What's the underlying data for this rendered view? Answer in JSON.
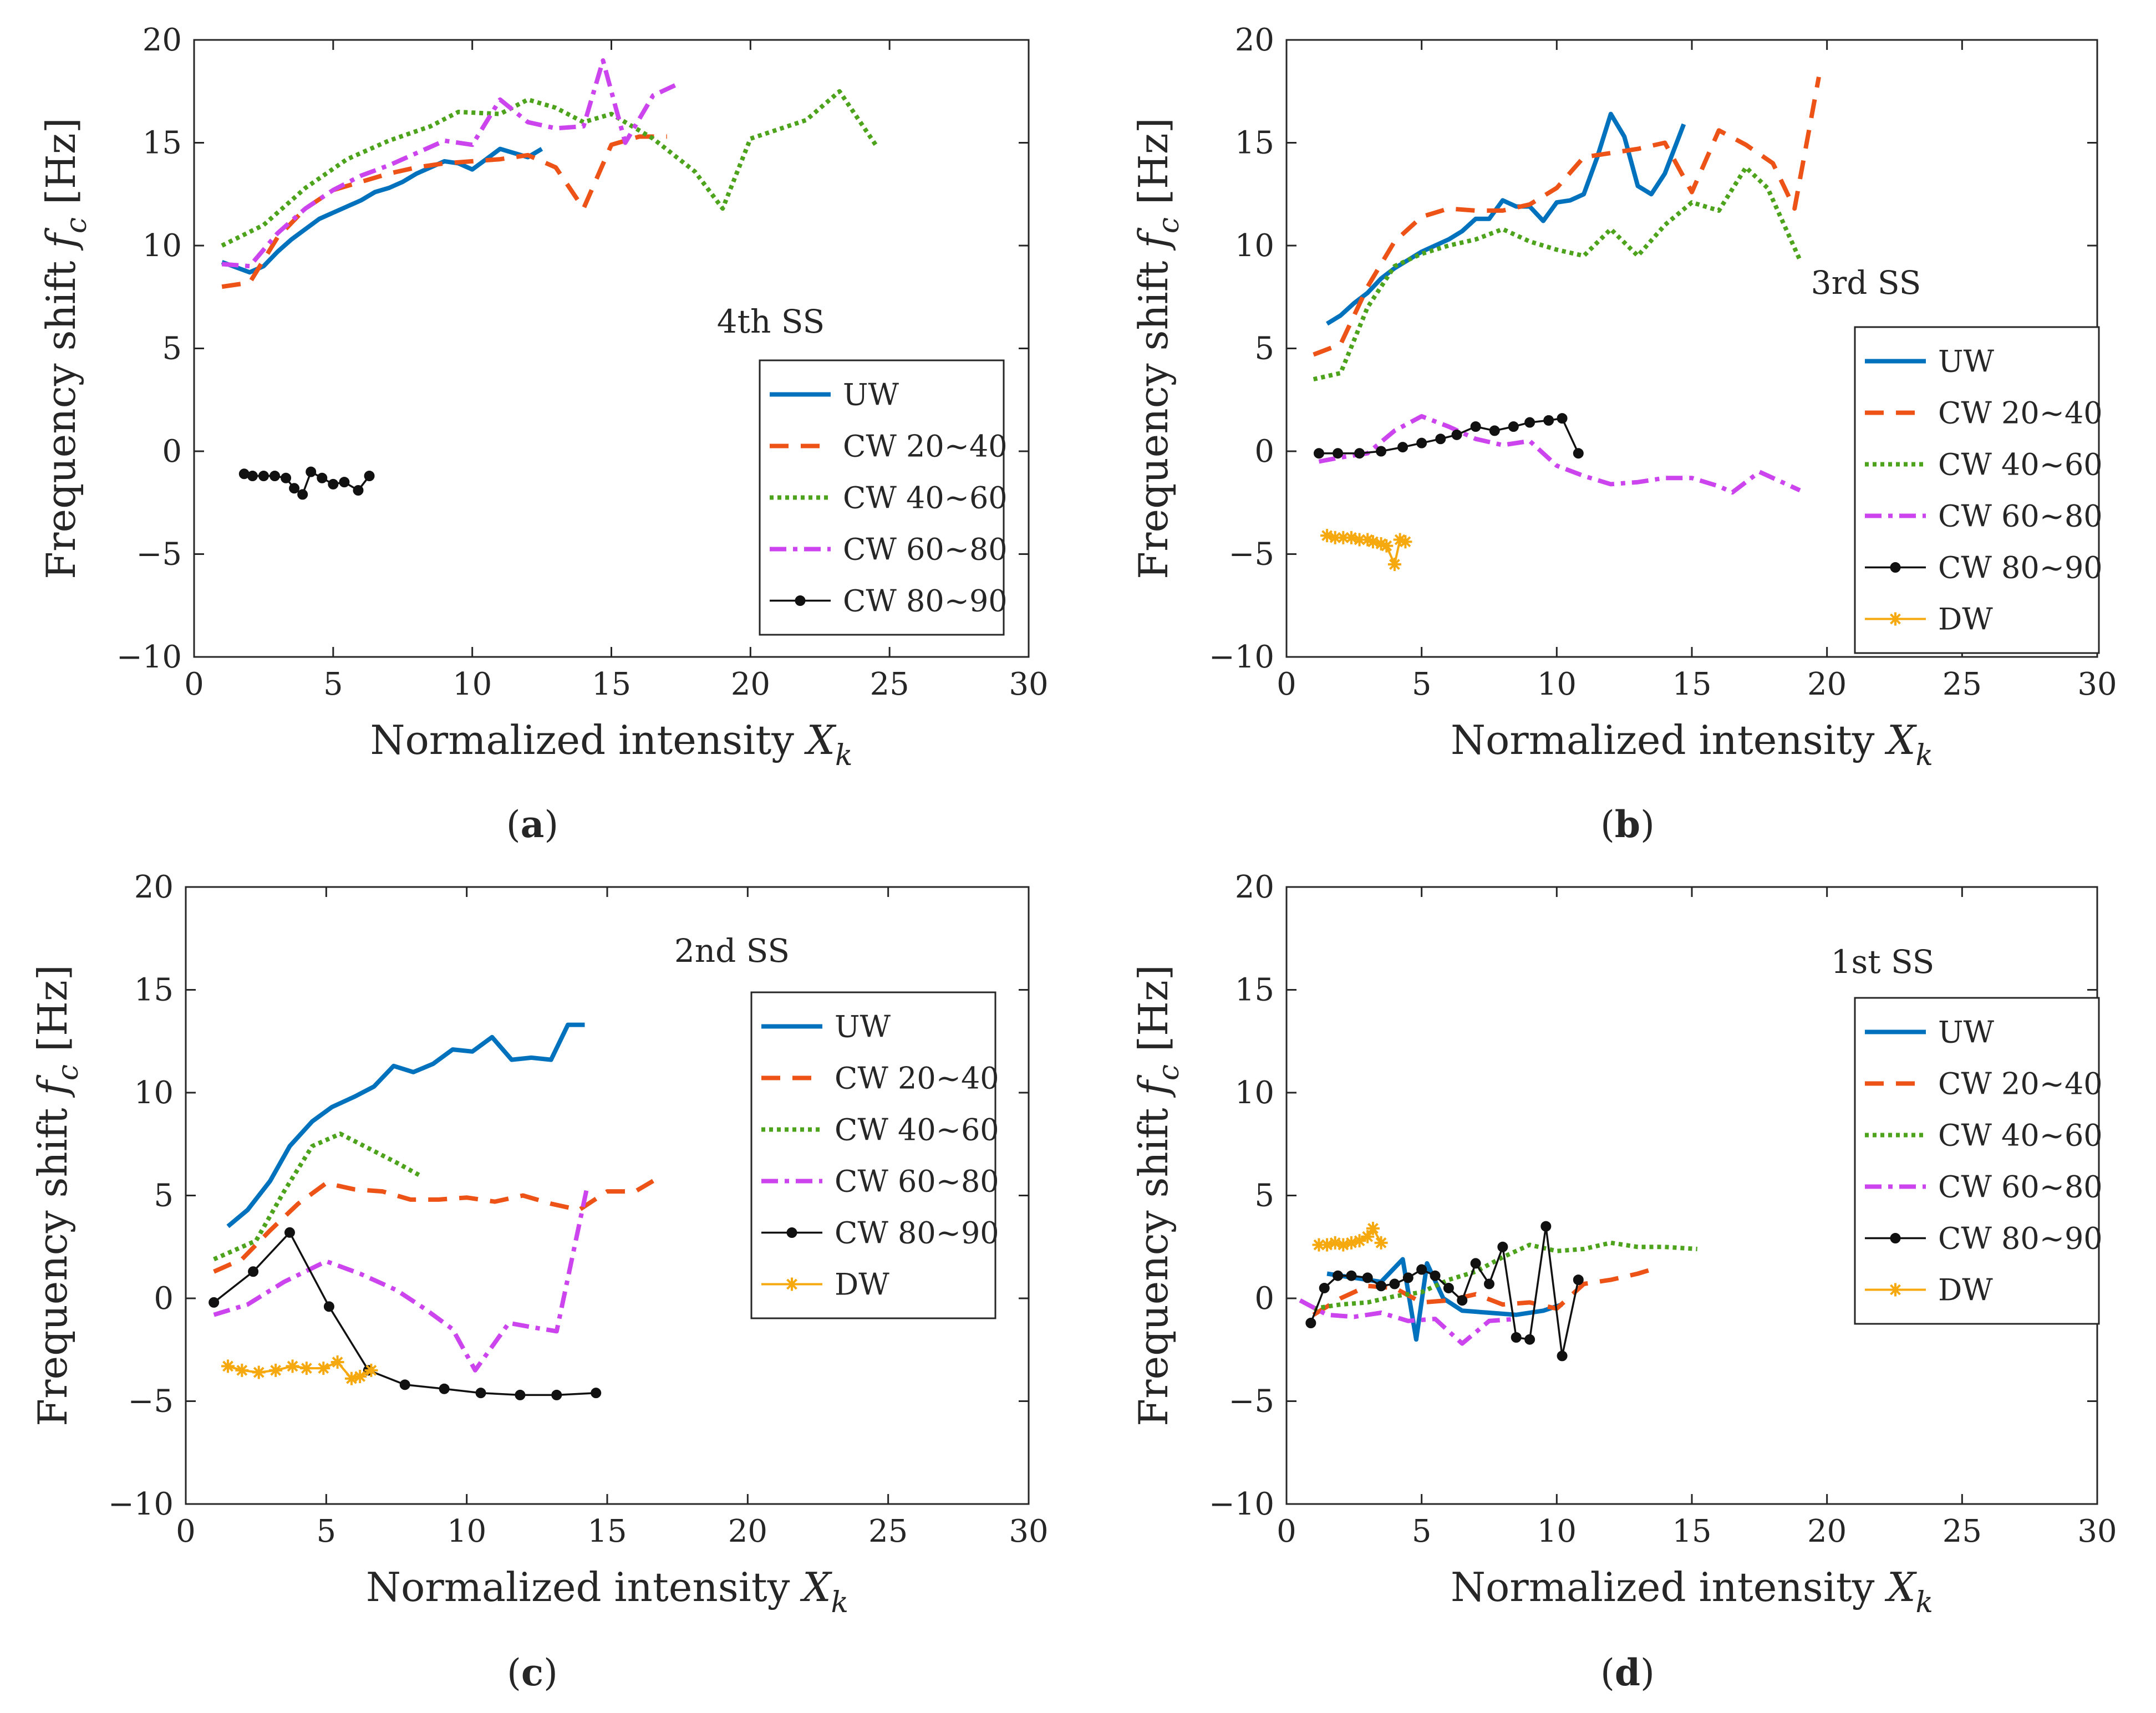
{
  "chart_data": [
    {
      "type": "line",
      "panel_label": "(a)",
      "annotation": "4th SS",
      "xlabel": "Normalized intensity X_k",
      "ylabel": "Frequency shift f_c [Hz]",
      "xlim": [
        0,
        30
      ],
      "ylim": [
        -10,
        20
      ],
      "xticks": [
        0,
        5,
        10,
        15,
        20,
        25,
        30
      ],
      "yticks": [
        -10,
        -5,
        0,
        5,
        10,
        15,
        20
      ],
      "grid": false,
      "legend_position": "right",
      "series": [
        {
          "name": "UW",
          "x": [
            1,
            2,
            2.5,
            3,
            3.5,
            4,
            4.5,
            5,
            5.5,
            6,
            6.5,
            7,
            7.5,
            8,
            8.5,
            9,
            9.5,
            10,
            10.5,
            11,
            11.5,
            12,
            12.5
          ],
          "values": [
            9.2,
            8.7,
            9.0,
            9.7,
            10.3,
            10.8,
            11.3,
            11.6,
            11.9,
            12.2,
            12.6,
            12.8,
            13.1,
            13.5,
            13.8,
            14.1,
            14.0,
            13.7,
            14.2,
            14.7,
            14.5,
            14.3,
            14.7
          ]
        },
        {
          "name": "CW 20~40",
          "x": [
            1,
            2,
            3,
            4,
            5,
            6,
            7,
            8,
            9,
            10,
            11,
            12,
            13,
            14,
            15,
            16,
            17
          ],
          "values": [
            8.0,
            8.2,
            10.4,
            11.8,
            12.7,
            13.1,
            13.5,
            13.8,
            14.0,
            14.1,
            14.2,
            14.4,
            13.8,
            11.8,
            14.9,
            15.3,
            15.3
          ]
        },
        {
          "name": "CW 40~60",
          "x": [
            1,
            2.5,
            4,
            5.5,
            7,
            8.5,
            9.5,
            11,
            12,
            13,
            14,
            15,
            16.5,
            18,
            19,
            20,
            22,
            23.2,
            24.5
          ],
          "values": [
            10.0,
            11.0,
            12.8,
            14.2,
            15.1,
            15.8,
            16.5,
            16.4,
            17.1,
            16.7,
            16.0,
            16.4,
            15.2,
            13.6,
            11.8,
            15.2,
            16.1,
            17.5,
            14.9
          ]
        },
        {
          "name": "CW 60~80",
          "x": [
            1,
            2,
            3,
            4,
            5,
            6,
            7,
            8,
            9,
            10,
            11,
            12,
            13,
            14,
            14.7,
            15.5,
            16.5,
            17.3
          ],
          "values": [
            9.1,
            9.0,
            10.6,
            11.8,
            12.7,
            13.4,
            13.9,
            14.5,
            15.1,
            14.9,
            17.1,
            16.0,
            15.7,
            15.8,
            19.0,
            15.0,
            17.3,
            17.8
          ]
        },
        {
          "name": "CW 80~90",
          "x": [
            1.8,
            2.1,
            2.5,
            2.9,
            3.3,
            3.6,
            3.9,
            4.2,
            4.6,
            5.0,
            5.4,
            5.9,
            6.3
          ],
          "values": [
            -1.1,
            -1.2,
            -1.2,
            -1.2,
            -1.3,
            -1.8,
            -2.1,
            -1.0,
            -1.3,
            -1.6,
            -1.5,
            -1.9,
            -1.2
          ]
        }
      ]
    },
    {
      "type": "line",
      "panel_label": "(b)",
      "annotation": "3rd SS",
      "xlabel": "Normalized intensity X_k",
      "ylabel": "Frequency shift f_c [Hz]",
      "xlim": [
        0,
        30
      ],
      "ylim": [
        -10,
        20
      ],
      "xticks": [
        0,
        5,
        10,
        15,
        20,
        25,
        30
      ],
      "yticks": [
        -10,
        -5,
        0,
        5,
        10,
        15,
        20
      ],
      "grid": false,
      "legend_position": "right",
      "series": [
        {
          "name": "UW",
          "x": [
            1.5,
            2,
            2.5,
            3,
            3.5,
            4,
            4.5,
            5,
            5.5,
            6,
            6.5,
            7,
            7.5,
            8,
            8.5,
            9,
            9.5,
            10,
            10.5,
            11,
            11.5,
            12,
            12.5,
            13,
            13.5,
            14,
            14.7
          ],
          "values": [
            6.2,
            6.6,
            7.2,
            7.7,
            8.4,
            8.9,
            9.3,
            9.7,
            10.0,
            10.3,
            10.7,
            11.3,
            11.3,
            12.2,
            11.9,
            11.9,
            11.2,
            12.1,
            12.2,
            12.5,
            14.3,
            16.4,
            15.3,
            12.9,
            12.5,
            13.5,
            15.9
          ]
        },
        {
          "name": "CW 20~40",
          "x": [
            1,
            2,
            3,
            4,
            5,
            6,
            7,
            8,
            9,
            10,
            11,
            12,
            13,
            14,
            15,
            16,
            17,
            18,
            18.8,
            19.7
          ],
          "values": [
            4.7,
            5.2,
            8.0,
            10.2,
            11.4,
            11.8,
            11.7,
            11.7,
            12.0,
            12.8,
            14.3,
            14.5,
            14.7,
            15.0,
            12.6,
            15.6,
            14.9,
            14.0,
            11.8,
            18.2
          ]
        },
        {
          "name": "CW 40~60",
          "x": [
            1,
            2,
            3,
            4,
            5,
            6,
            7,
            8,
            9,
            10,
            11,
            12,
            13,
            14,
            15,
            16,
            17,
            17.8,
            19
          ],
          "values": [
            3.5,
            3.8,
            7.0,
            9.0,
            9.6,
            10.0,
            10.3,
            10.8,
            10.2,
            9.8,
            9.5,
            10.8,
            9.5,
            11.0,
            12.1,
            11.7,
            13.8,
            12.8,
            9.3
          ]
        },
        {
          "name": "CW 60~80",
          "x": [
            1.2,
            2,
            3,
            4,
            5,
            6,
            7,
            8,
            9,
            10,
            11,
            12,
            13,
            14,
            15,
            16,
            16.5,
            17.5,
            19
          ],
          "values": [
            -0.5,
            -0.3,
            -0.1,
            1.0,
            1.7,
            1.2,
            0.6,
            0.3,
            0.5,
            -0.7,
            -1.2,
            -1.6,
            -1.5,
            -1.3,
            -1.3,
            -1.7,
            -2.0,
            -1.0,
            -1.9
          ]
        },
        {
          "name": "CW 80~90",
          "x": [
            1.2,
            1.9,
            2.7,
            3.5,
            4.3,
            5.0,
            5.7,
            6.3,
            7.0,
            7.7,
            8.4,
            9.0,
            9.7,
            10.2,
            10.8
          ],
          "values": [
            -0.1,
            -0.1,
            -0.1,
            0.0,
            0.2,
            0.4,
            0.6,
            0.8,
            1.2,
            1.0,
            1.2,
            1.4,
            1.5,
            1.6,
            -0.1
          ]
        },
        {
          "name": "DW",
          "x": [
            1.5,
            1.8,
            2.1,
            2.4,
            2.7,
            3.0,
            3.2,
            3.5,
            3.7,
            4.0,
            4.2,
            4.4
          ],
          "values": [
            -4.1,
            -4.2,
            -4.2,
            -4.2,
            -4.3,
            -4.3,
            -4.4,
            -4.5,
            -4.6,
            -5.5,
            -4.3,
            -4.4
          ]
        }
      ]
    },
    {
      "type": "line",
      "panel_label": "(c)",
      "annotation": "2nd SS",
      "xlabel": "Normalized intensity X_k",
      "ylabel": "Frequency shift f_c [Hz]",
      "xlim": [
        0,
        30
      ],
      "ylim": [
        -10,
        20
      ],
      "xticks": [
        0,
        5,
        10,
        15,
        20,
        25,
        30
      ],
      "yticks": [
        -10,
        -5,
        0,
        5,
        10,
        15,
        20
      ],
      "grid": false,
      "legend_position": "right",
      "series": [
        {
          "name": "UW",
          "x": [
            1.5,
            2.2,
            3.0,
            3.7,
            4.5,
            5.2,
            6.0,
            6.7,
            7.4,
            8.1,
            8.8,
            9.5,
            10.2,
            10.9,
            11.6,
            12.3,
            13.0,
            13.6,
            14.2
          ],
          "values": [
            3.5,
            4.3,
            5.7,
            7.4,
            8.6,
            9.3,
            9.8,
            10.3,
            11.3,
            11.0,
            11.4,
            12.1,
            12.0,
            12.7,
            11.6,
            11.7,
            11.6,
            13.3,
            13.3
          ]
        },
        {
          "name": "CW 20~40",
          "x": [
            1,
            2,
            3,
            4,
            5,
            6,
            7,
            8,
            9,
            10,
            11,
            12,
            13,
            14,
            15,
            16,
            17
          ],
          "values": [
            1.3,
            1.9,
            3.3,
            4.6,
            5.6,
            5.3,
            5.2,
            4.8,
            4.8,
            4.9,
            4.7,
            5.0,
            4.6,
            4.3,
            5.2,
            5.2,
            6.0
          ]
        },
        {
          "name": "CW 40~60",
          "x": [
            1,
            2.5,
            3.5,
            4.5,
            5.5,
            6.5,
            7.5,
            8.3
          ],
          "values": [
            1.9,
            2.8,
            5.2,
            7.4,
            8.0,
            7.3,
            6.6,
            6.0
          ]
        },
        {
          "name": "CW 60~80",
          "x": [
            1,
            2.2,
            3.5,
            5.0,
            6.2,
            7.5,
            8.5,
            9.5,
            10.3,
            11.5,
            12.3,
            13.2,
            14.3
          ],
          "values": [
            -0.8,
            -0.3,
            0.8,
            1.8,
            1.2,
            0.4,
            -0.5,
            -1.5,
            -3.5,
            -1.2,
            -1.4,
            -1.6,
            5.5
          ]
        },
        {
          "name": "CW 80~90",
          "x": [
            1.0,
            2.4,
            3.7,
            5.1,
            6.5,
            7.8,
            9.2,
            10.5,
            11.9,
            13.2,
            14.6
          ],
          "values": [
            -0.2,
            1.3,
            3.2,
            -0.4,
            -3.5,
            -4.2,
            -4.4,
            -4.6,
            -4.7,
            -4.7,
            -4.6
          ]
        },
        {
          "name": "DW",
          "x": [
            1.5,
            2.0,
            2.6,
            3.2,
            3.8,
            4.3,
            4.9,
            5.4,
            5.9,
            6.2,
            6.6
          ],
          "values": [
            -3.3,
            -3.5,
            -3.6,
            -3.5,
            -3.3,
            -3.4,
            -3.4,
            -3.1,
            -3.9,
            -3.8,
            -3.5
          ]
        }
      ]
    },
    {
      "type": "line",
      "panel_label": "(d)",
      "annotation": "1st SS",
      "xlabel": "Normalized intensity X_k",
      "ylabel": "Frequency shift f_c [Hz]",
      "xlim": [
        0,
        30
      ],
      "ylim": [
        -10,
        20
      ],
      "xticks": [
        0,
        5,
        10,
        15,
        20,
        25,
        30
      ],
      "yticks": [
        -10,
        -5,
        0,
        5,
        10,
        15,
        20
      ],
      "grid": false,
      "legend_position": "right",
      "series": [
        {
          "name": "UW",
          "x": [
            1.5,
            2.5,
            3.5,
            4.3,
            4.8,
            5.2,
            5.8,
            6.5,
            7.5,
            8.5,
            9.5,
            10.2
          ],
          "values": [
            1.2,
            1.0,
            0.8,
            1.9,
            -2.0,
            1.7,
            0.0,
            -0.6,
            -0.7,
            -0.8,
            -0.6,
            -0.3
          ]
        },
        {
          "name": "CW 20~40",
          "x": [
            1,
            2,
            3,
            4,
            5,
            6,
            7,
            8,
            9,
            10,
            11,
            12,
            13,
            13.5
          ],
          "values": [
            -0.8,
            0.0,
            0.6,
            0.5,
            -0.2,
            -0.1,
            0.2,
            -0.3,
            -0.2,
            -0.5,
            0.7,
            0.9,
            1.2,
            1.4
          ]
        },
        {
          "name": "CW 40~60",
          "x": [
            1,
            2,
            3,
            4,
            5,
            6,
            7,
            8,
            9,
            10,
            11,
            12,
            13,
            14,
            15.2
          ],
          "values": [
            -0.5,
            -0.3,
            -0.2,
            0.1,
            0.3,
            0.9,
            1.3,
            2.0,
            2.6,
            2.3,
            2.4,
            2.7,
            2.5,
            2.5,
            2.4
          ]
        },
        {
          "name": "CW 60~80",
          "x": [
            0.5,
            1.5,
            2.5,
            3.5,
            4.5,
            5.5,
            6.5,
            7.5,
            8.5
          ],
          "values": [
            -0.1,
            -0.8,
            -0.9,
            -0.7,
            -1.1,
            -1.0,
            -2.2,
            -1.1,
            -1.0
          ]
        },
        {
          "name": "CW 80~90",
          "x": [
            0.9,
            1.4,
            1.9,
            2.4,
            3.0,
            3.5,
            4.0,
            4.5,
            5.0,
            5.5,
            6.0,
            6.5,
            7.0,
            7.5,
            8.0,
            8.5,
            9.0,
            9.6,
            10.2,
            10.8
          ],
          "values": [
            -1.2,
            0.5,
            1.1,
            1.1,
            1.0,
            0.6,
            0.7,
            1.0,
            1.4,
            1.1,
            0.5,
            -0.1,
            1.7,
            0.7,
            2.5,
            -1.9,
            -2.0,
            3.5,
            -2.8,
            0.9
          ]
        },
        {
          "name": "DW",
          "x": [
            1.2,
            1.5,
            1.8,
            2.1,
            2.4,
            2.7,
            3.0,
            3.2,
            3.5
          ],
          "values": [
            2.6,
            2.6,
            2.7,
            2.6,
            2.7,
            2.8,
            3.0,
            3.4,
            2.7
          ]
        }
      ]
    }
  ]
}
